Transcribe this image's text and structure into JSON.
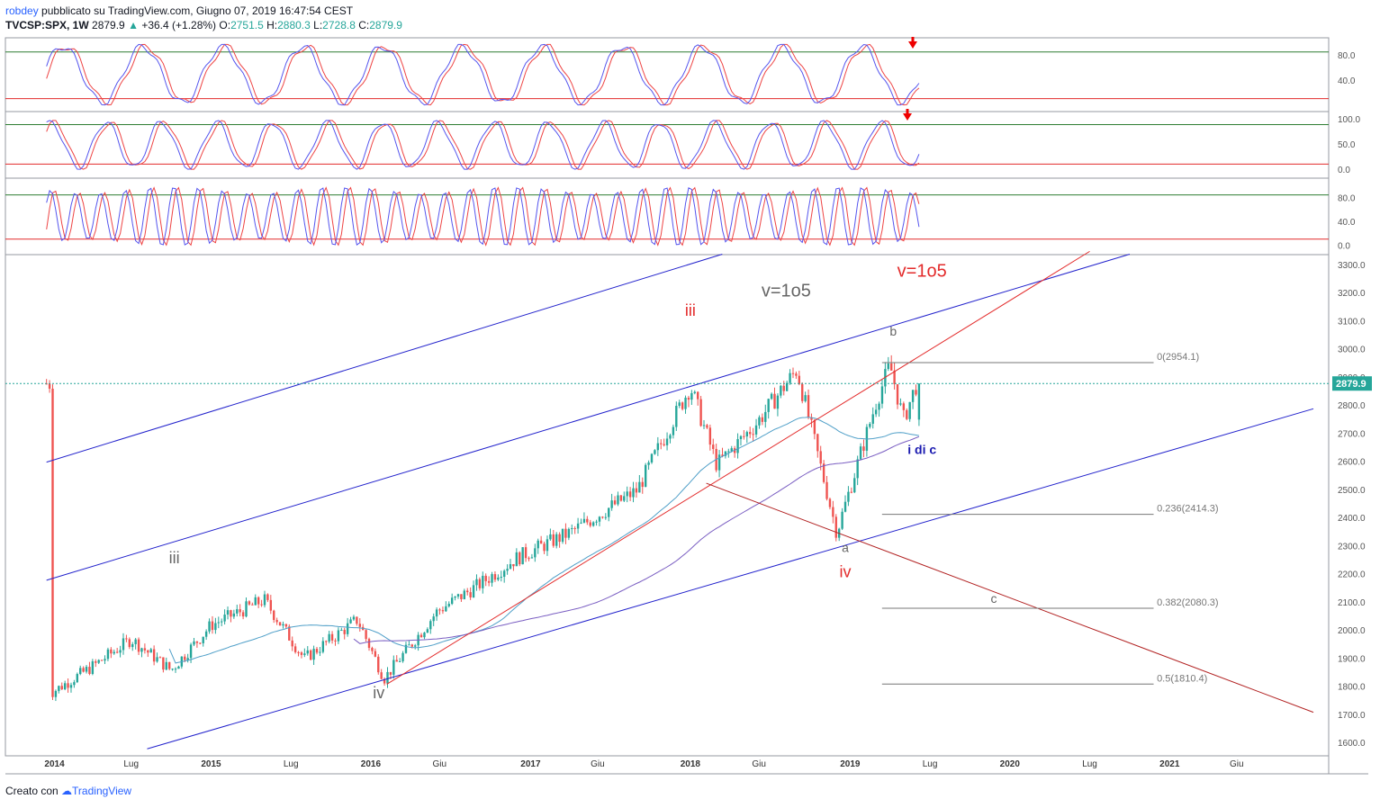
{
  "header": {
    "author": "robdey",
    "published": "pubblicato su TradingView.com, Giugno 07, 2019 16:47:54 CEST",
    "symbol": "TVCSP:SPX, 1W",
    "last": "2879.9",
    "change_arrow": "▲",
    "change": "+36.4 (+1.28%)",
    "open_label": "O:",
    "open": "2751.5",
    "high_label": "H:",
    "high": "2880.3",
    "low_label": "L:",
    "low": "2728.8",
    "close_label": "C:",
    "close": "2879.9"
  },
  "footer": {
    "created_with": "Creato con",
    "brand": "TradingView"
  },
  "colors": {
    "up": "#26a69a",
    "down": "#ef5350",
    "blue_line": "#2222cc",
    "red_line": "#e32b2b",
    "dark_red_line": "#b22222",
    "stoch_k": "#5555ee",
    "stoch_d": "#ee4444",
    "ma1": "#4f9fc8",
    "ma2": "#7a5ec2",
    "price_tag": "#26a69a"
  },
  "chart_data": {
    "type": "candlestick",
    "symbol": "TVCSP:SPX",
    "interval": "1W",
    "y_range": [
      1580,
      3360
    ],
    "price_ticks": [
      "3300.0",
      "3200.0",
      "3100.0",
      "3000.0",
      "2900.0",
      "2800.0",
      "2700.0",
      "2600.0",
      "2500.0",
      "2400.0",
      "2300.0",
      "2200.0",
      "2100.0",
      "2000.0",
      "1900.0",
      "1800.0",
      "1700.0",
      "1600.0"
    ],
    "last_price_label": "2879.9",
    "date_labels": [
      "2014",
      "Lug",
      "2015",
      "Lug",
      "2016",
      "Giu",
      "2017",
      "Giu",
      "2018",
      "Giu",
      "2019",
      "Lug",
      "2020",
      "Lug",
      "2021",
      "Giu"
    ],
    "wave_labels": [
      {
        "text": "v=1o5",
        "color": "red"
      },
      {
        "text": "v=1o5",
        "color": "gray"
      },
      {
        "text": "iii",
        "color": "red"
      },
      {
        "text": "iii",
        "color": "gray"
      },
      {
        "text": "iv",
        "color": "gray"
      },
      {
        "text": "iv",
        "color": "red"
      },
      {
        "text": "b",
        "color": "gray"
      },
      {
        "text": "a",
        "color": "gray"
      },
      {
        "text": "c",
        "color": "gray"
      },
      {
        "text": "i di c",
        "color": "blue"
      }
    ],
    "fib_levels": [
      {
        "label": "0(2954.1)",
        "value": 2954.1
      },
      {
        "label": "0.236(2414.3)",
        "value": 2414.3
      },
      {
        "label": "0.382(2080.3)",
        "value": 2080.3
      },
      {
        "label": "0.5(1810.4)",
        "value": 1810.4
      }
    ],
    "weekly_closes_approx": [
      {
        "date": "2014-01",
        "close": 1780
      },
      {
        "date": "2014-04",
        "close": 1870
      },
      {
        "date": "2014-07",
        "close": 1970
      },
      {
        "date": "2014-10",
        "close": 1860
      },
      {
        "date": "2015-01",
        "close": 2020
      },
      {
        "date": "2015-05",
        "close": 2110
      },
      {
        "date": "2015-08",
        "close": 1900
      },
      {
        "date": "2015-12",
        "close": 2040
      },
      {
        "date": "2016-02",
        "close": 1830
      },
      {
        "date": "2016-06",
        "close": 2070
      },
      {
        "date": "2016-09",
        "close": 2160
      },
      {
        "date": "2016-12",
        "close": 2260
      },
      {
        "date": "2017-04",
        "close": 2350
      },
      {
        "date": "2017-09",
        "close": 2500
      },
      {
        "date": "2018-01",
        "close": 2870
      },
      {
        "date": "2018-03",
        "close": 2590
      },
      {
        "date": "2018-06",
        "close": 2740
      },
      {
        "date": "2018-09",
        "close": 2930
      },
      {
        "date": "2018-12",
        "close": 2350
      },
      {
        "date": "2019-03",
        "close": 2820
      },
      {
        "date": "2019-04",
        "close": 2945
      },
      {
        "date": "2019-05",
        "close": 2750
      },
      {
        "date": "2019-06",
        "close": 2879.9
      }
    ],
    "oscillators": [
      {
        "name": "stochastic-1",
        "ticks": [
          "80.0",
          "40.0"
        ],
        "upper": 80,
        "lower": 20
      },
      {
        "name": "stochastic-2",
        "ticks": [
          "100.0",
          "50.0",
          "0.0"
        ],
        "upper": 80,
        "lower": 20
      },
      {
        "name": "stochastic-3",
        "ticks": [
          "80.0",
          "40.0",
          "0.0"
        ],
        "upper": 80,
        "lower": 20
      }
    ]
  }
}
